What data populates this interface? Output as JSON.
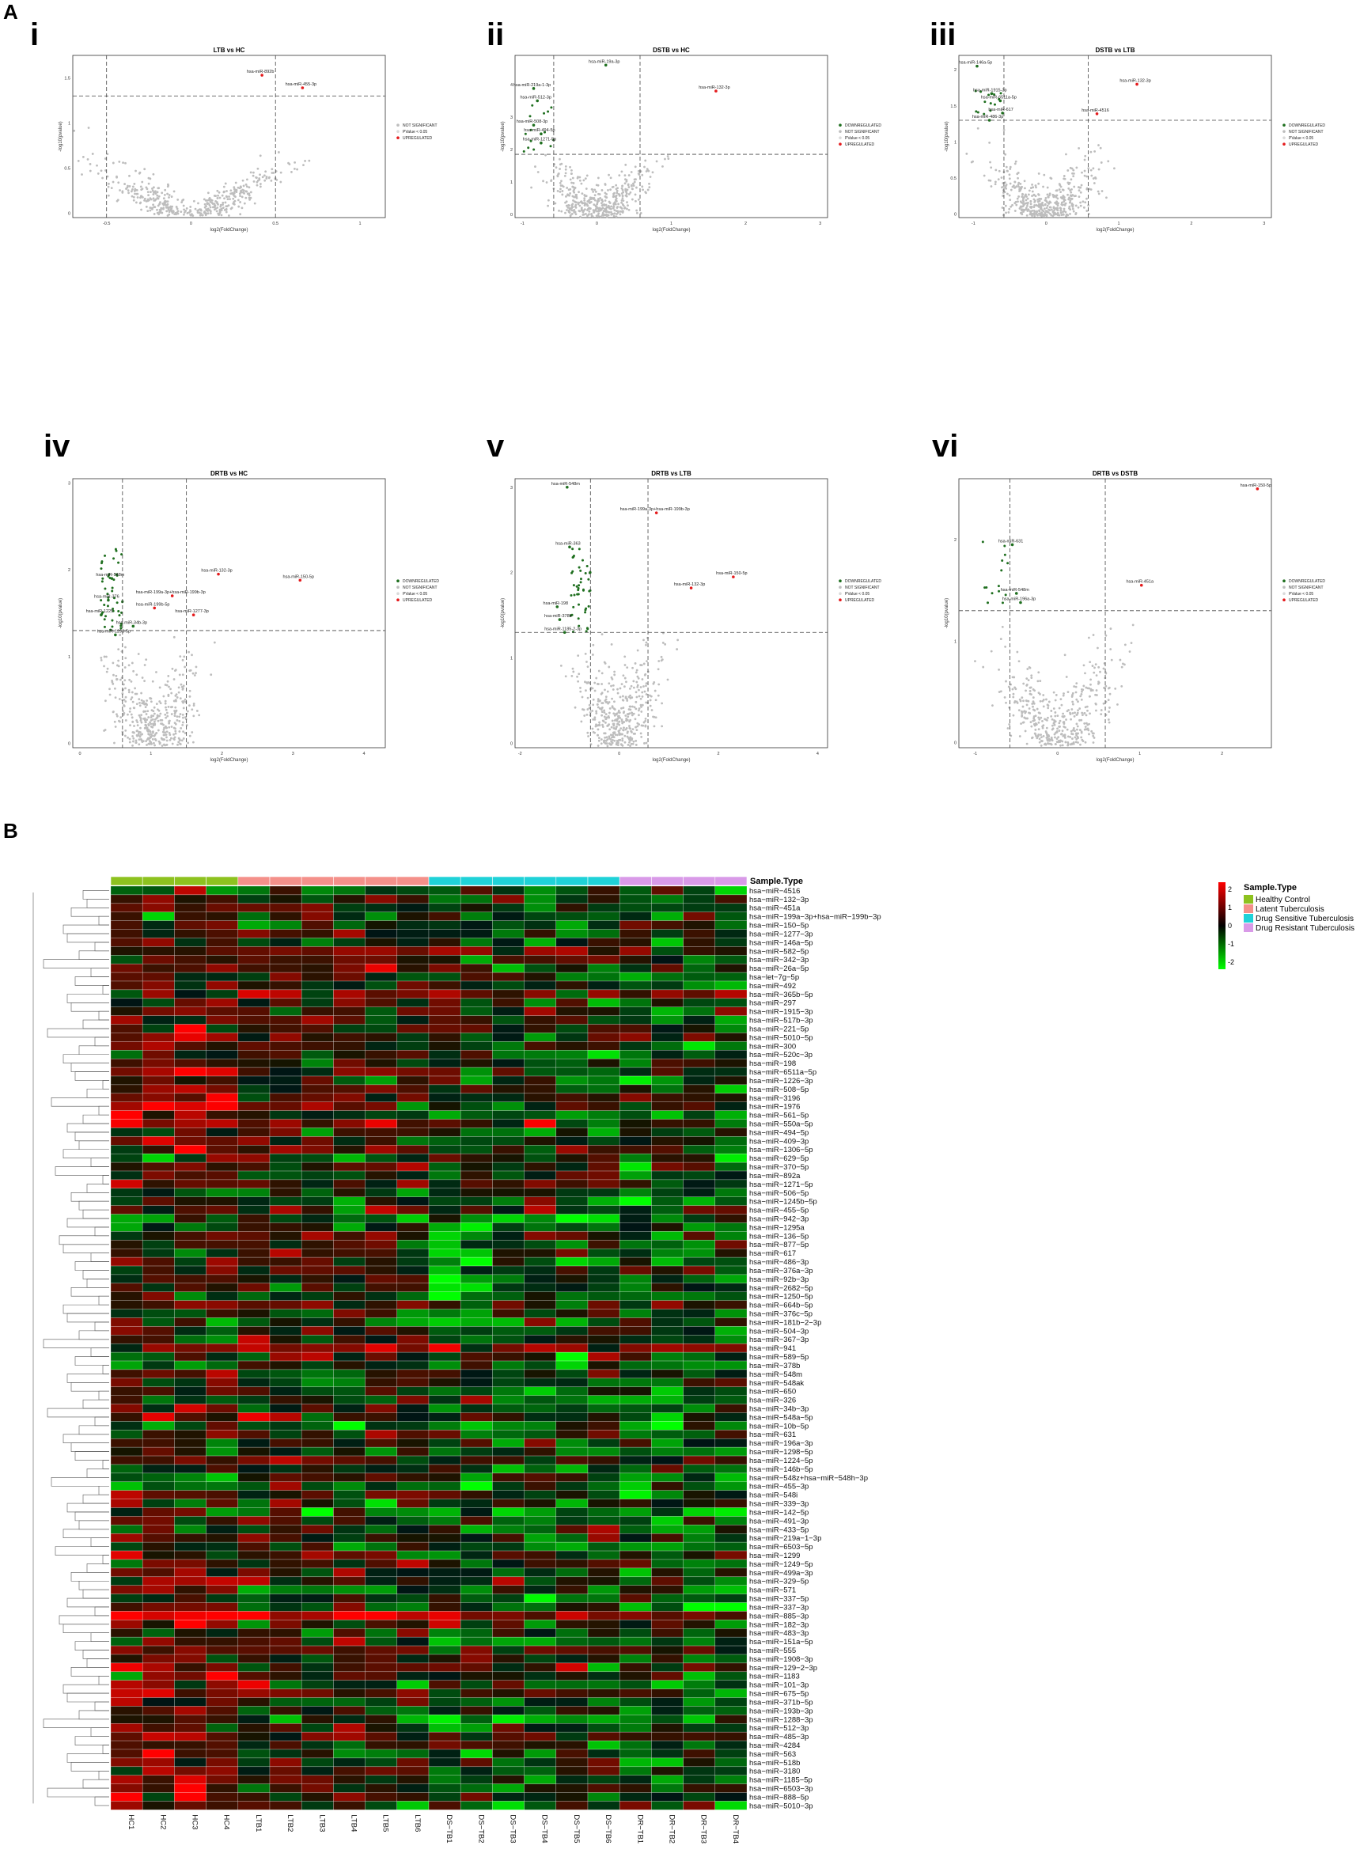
{
  "panel_labels": {
    "a": "A",
    "b": "B"
  },
  "sub_labels": [
    "i",
    "ii",
    "iii",
    "iv",
    "v",
    "vi"
  ],
  "legend_volcano": {
    "items": [
      "DOWNREGULATED",
      "NOT SIGNIFICANT",
      "PValue < 0.05",
      "UPREGULATED"
    ],
    "items_i": [
      "NOT SIGNIFICANT",
      "PValue < 0.05",
      "UPREGULATED"
    ],
    "colors": {
      "down": "#1f6f1f",
      "ns": "#bdbdbd",
      "p": "#d9d9d9",
      "up": "#e41a1c"
    }
  },
  "chart_data": [
    {
      "type": "scatter",
      "title": "LTB vs HC",
      "xlabel": "log2(FoldChange)",
      "ylabel": "-log10(pvalue)",
      "xlim": [
        -0.7,
        1.15
      ],
      "ylim": [
        -0.05,
        1.75
      ],
      "xticks": [
        -0.5,
        0.0,
        0.5,
        1.0
      ],
      "yticks": [
        0.0,
        0.5,
        1.0,
        1.5
      ],
      "vlines": [
        -0.5,
        0.5
      ],
      "hline": 1.3,
      "labels": [
        {
          "text": "hsa-miR-892b",
          "x": 0.42,
          "y": 1.53,
          "cls": "up"
        },
        {
          "text": "hsa-miR-455-3p",
          "x": 0.66,
          "y": 1.39,
          "cls": "up"
        }
      ]
    },
    {
      "type": "scatter",
      "title": "DSTB vs HC",
      "xlabel": "log2(FoldChange)",
      "ylabel": "-log10(pvalue)",
      "xlim": [
        -1.1,
        3.1
      ],
      "ylim": [
        -0.1,
        4.9
      ],
      "xticks": [
        -1,
        0,
        1,
        2,
        3
      ],
      "yticks": [
        0,
        1,
        2,
        3,
        4
      ],
      "vlines": [
        -0.58,
        0.58
      ],
      "hline": 1.85,
      "labels": [
        {
          "text": "hsa-miR-19a-3p",
          "x": 0.12,
          "y": 4.6,
          "cls": "down"
        },
        {
          "text": "hsa-miR-132-3p",
          "x": 1.6,
          "y": 3.8,
          "cls": "up"
        },
        {
          "text": "hsa-miR-219a-1-3p",
          "x": -0.85,
          "y": 3.88,
          "cls": "down"
        },
        {
          "text": "hsa-miR-512-3p",
          "x": -0.8,
          "y": 3.5,
          "cls": "down"
        },
        {
          "text": "hsa-miR-508-3p",
          "x": -0.85,
          "y": 2.75,
          "cls": "down"
        },
        {
          "text": "hsa-miR-494-5p",
          "x": -0.75,
          "y": 2.48,
          "cls": "down"
        },
        {
          "text": "hsa-miR-1271-5p",
          "x": -0.75,
          "y": 2.2,
          "cls": "down"
        }
      ]
    },
    {
      "type": "scatter",
      "title": "DSTB vs LTB",
      "xlabel": "log2(FoldChange)",
      "ylabel": "-log10(pvalue)",
      "xlim": [
        -1.2,
        3.1
      ],
      "ylim": [
        -0.05,
        2.2
      ],
      "xticks": [
        -1,
        0,
        1,
        2,
        3
      ],
      "yticks": [
        0.0,
        0.5,
        1.0,
        1.5,
        2.0
      ],
      "vlines": [
        -0.58,
        0.58
      ],
      "hline": 1.3,
      "labels": [
        {
          "text": "hsa-miR-146a-5p",
          "x": -0.95,
          "y": 2.05,
          "cls": "down"
        },
        {
          "text": "hsa-miR-132-3p",
          "x": 1.25,
          "y": 1.8,
          "cls": "up"
        },
        {
          "text": "hsa-miR-1915-3p",
          "x": -0.75,
          "y": 1.67,
          "cls": "down"
        },
        {
          "text": "hsa-miR-6511a-5p",
          "x": -0.63,
          "y": 1.57,
          "cls": "down"
        },
        {
          "text": "hsa-miR-617",
          "x": -0.6,
          "y": 1.4,
          "cls": "down"
        },
        {
          "text": "hsa-miR-4516",
          "x": 0.7,
          "y": 1.39,
          "cls": "up"
        },
        {
          "text": "hsa-miR-486-3p",
          "x": -0.78,
          "y": 1.3,
          "cls": "down"
        }
      ]
    },
    {
      "type": "scatter",
      "title": "DRTB vs HC",
      "xlabel": "log2(FoldChange)",
      "ylabel": "-log10(pvalue)",
      "xlim": [
        -0.1,
        4.3
      ],
      "ylim": [
        -0.05,
        3.05
      ],
      "xticks": [
        0,
        1,
        2,
        3,
        4
      ],
      "yticks": [
        0,
        1,
        2,
        3
      ],
      "vlines": [
        0.6,
        1.5
      ],
      "hline": 1.3,
      "labels": [
        {
          "text": "hsa-miR-132-3p",
          "x": 1.95,
          "y": 1.95,
          "cls": "up"
        },
        {
          "text": "hsa-miR-150-5p",
          "x": 3.1,
          "y": 1.88,
          "cls": "up"
        },
        {
          "text": "hsa-miR-548m",
          "x": 0.45,
          "y": 1.9,
          "cls": "down"
        },
        {
          "text": "hsa-miR-199a-3p+hsa-miR-199b-3p",
          "x": 1.3,
          "y": 1.7,
          "cls": "up"
        },
        {
          "text": "hsa-miR-376",
          "x": 0.4,
          "y": 1.65,
          "cls": "down"
        },
        {
          "text": "hsa-miR-199b-5p",
          "x": 1.05,
          "y": 1.56,
          "cls": "up"
        },
        {
          "text": "hsa-miR-1277-3p",
          "x": 1.6,
          "y": 1.48,
          "cls": "up"
        },
        {
          "text": "hsa-miR-1225",
          "x": 0.3,
          "y": 1.48,
          "cls": "down"
        },
        {
          "text": "hsa-miR-34b-3p",
          "x": 0.75,
          "y": 1.35,
          "cls": "down"
        },
        {
          "text": "hsa-miR-1298-5p",
          "x": 0.5,
          "y": 1.25,
          "cls": "down"
        }
      ]
    },
    {
      "type": "scatter",
      "title": "DRTB vs LTB",
      "xlabel": "log2(FoldChange)",
      "ylabel": "-log10(pvalue)",
      "xlim": [
        -2.1,
        4.2
      ],
      "ylim": [
        -0.05,
        3.1
      ],
      "xticks": [
        -2,
        0,
        2,
        4
      ],
      "yticks": [
        0,
        1,
        2,
        3
      ],
      "vlines": [
        -0.58,
        0.58
      ],
      "hline": 1.3,
      "labels": [
        {
          "text": "hsa-miR-548m",
          "x": -1.05,
          "y": 3.0,
          "cls": "down"
        },
        {
          "text": "hsa-miR-199a-3p+hsa-miR-199b-3p",
          "x": 0.75,
          "y": 2.7,
          "cls": "up"
        },
        {
          "text": "hsa-miR-363",
          "x": -1.0,
          "y": 2.3,
          "cls": "down"
        },
        {
          "text": "hsa-miR-150-5p",
          "x": 2.3,
          "y": 1.95,
          "cls": "up"
        },
        {
          "text": "hsa-miR-132-3p",
          "x": 1.45,
          "y": 1.82,
          "cls": "up"
        },
        {
          "text": "hsa-miR-198",
          "x": -1.25,
          "y": 1.6,
          "cls": "down"
        },
        {
          "text": "hsa-miR-378b",
          "x": -1.2,
          "y": 1.45,
          "cls": "down"
        },
        {
          "text": "hsa-miR-1185-2-3p",
          "x": -1.1,
          "y": 1.3,
          "cls": "down"
        }
      ]
    },
    {
      "type": "scatter",
      "title": "DRTB vs DSTB",
      "xlabel": "log2(FoldChange)",
      "ylabel": "-log10(pvalue)",
      "xlim": [
        -1.2,
        2.6
      ],
      "ylim": [
        -0.05,
        2.6
      ],
      "xticks": [
        -1,
        0,
        1,
        2
      ],
      "yticks": [
        0,
        1,
        2
      ],
      "vlines": [
        -0.58,
        0.58
      ],
      "hline": 1.3,
      "labels": [
        {
          "text": "hsa-miR-150-5p",
          "x": 2.43,
          "y": 2.5,
          "cls": "up"
        },
        {
          "text": "hsa-miR-631",
          "x": -0.55,
          "y": 1.95,
          "cls": "down"
        },
        {
          "text": "hsa-miR-451a",
          "x": 1.02,
          "y": 1.55,
          "cls": "up"
        },
        {
          "text": "hsa-miR-548m",
          "x": -0.5,
          "y": 1.47,
          "cls": "down"
        },
        {
          "text": "hsa-miR-196a-3p",
          "x": -0.45,
          "y": 1.38,
          "cls": "down"
        }
      ]
    },
    {
      "type": "heatmap",
      "columns": [
        "HC1",
        "HC2",
        "HC3",
        "HC4",
        "LTB1",
        "LTB2",
        "LTB3",
        "LTB4",
        "LTB5",
        "LTB6",
        "DS−TB1",
        "DS−TB2",
        "DS−TB3",
        "DS−TB4",
        "DS−TB5",
        "DS−TB6",
        "DR−TB1",
        "DR−TB2",
        "DR−TB3",
        "DR−TB4"
      ],
      "column_groups": [
        0,
        0,
        0,
        0,
        1,
        1,
        1,
        1,
        1,
        1,
        2,
        2,
        2,
        2,
        2,
        2,
        3,
        3,
        3,
        3
      ],
      "group_title": "Sample.Type",
      "groups": [
        {
          "name": "Healthy Control",
          "color": "#8dc21f"
        },
        {
          "name": "Latent Tuberculosis",
          "color": "#f4908a"
        },
        {
          "name": "Drug Sensitive Tuberculosis",
          "color": "#1fd2d8"
        },
        {
          "name": "Drug Resistant Tuberculosis",
          "color": "#d99ae8"
        }
      ],
      "scale": {
        "min": -2,
        "max": 2,
        "ticks": [
          2,
          1,
          0,
          -1,
          -2
        ]
      },
      "rows": [
        "hsa−miR−4516",
        "hsa−miR−132−3p",
        "hsa−miR−451a",
        "hsa−miR−199a−3p+hsa−miR−199b−3p",
        "hsa−miR−150−5p",
        "hsa−miR−1277−3p",
        "hsa−miR−146a−5p",
        "hsa−miR−582−5p",
        "hsa−miR−342−3p",
        "hsa−miR−26a−5p",
        "hsa−let−7g−5p",
        "hsa−miR−492",
        "hsa−miR−365b−5p",
        "hsa−miR−297",
        "hsa−miR−1915−3p",
        "hsa−miR−517b−3p",
        "hsa−miR−221−5p",
        "hsa−miR−5010−5p",
        "hsa−miR−300",
        "hsa−miR−520c−3p",
        "hsa−miR−198",
        "hsa−miR−6511a−5p",
        "hsa−miR−1226−3p",
        "hsa−miR−508−5p",
        "hsa−miR−3196",
        "hsa−miR−1976",
        "hsa−miR−561−5p",
        "hsa−miR−550a−5p",
        "hsa−miR−494−5p",
        "hsa−miR−409−3p",
        "hsa−miR−1306−5p",
        "hsa−miR−629−5p",
        "hsa−miR−370−5p",
        "hsa−miR−892a",
        "hsa−miR−1271−5p",
        "hsa−miR−506−5p",
        "hsa−miR−1245b−5p",
        "hsa−miR−455−5p",
        "hsa−miR−942−3p",
        "hsa−miR−1295a",
        "hsa−miR−136−5p",
        "hsa−miR−877−5p",
        "hsa−miR−617",
        "hsa−miR−486−3p",
        "hsa−miR−376a−3p",
        "hsa−miR−92b−3p",
        "hsa−miR−2682−5p",
        "hsa−miR−1250−5p",
        "hsa−miR−664b−5p",
        "hsa−miR−376c−5p",
        "hsa−miR−181b−2−3p",
        "hsa−miR−504−3p",
        "hsa−miR−367−3p",
        "hsa−miR−941",
        "hsa−miR−589−5p",
        "hsa−miR−378b",
        "hsa−miR−548m",
        "hsa−miR−548ak",
        "hsa−miR−650",
        "hsa−miR−326",
        "hsa−miR−34b−3p",
        "hsa−miR−548a−5p",
        "hsa−miR−10b−5p",
        "hsa−miR−631",
        "hsa−miR−196a−3p",
        "hsa−miR−1298−5p",
        "hsa−miR−1224−5p",
        "hsa−miR−146b−5p",
        "hsa−miR−548z+hsa−miR−548h−3p",
        "hsa−miR−455−3p",
        "hsa−miR−548i",
        "hsa−miR−339−3p",
        "hsa−miR−142−5p",
        "hsa−miR−491−3p",
        "hsa−miR−433−5p",
        "hsa−miR−219a−1−3p",
        "hsa−miR−6503−5p",
        "hsa−miR−1299",
        "hsa−miR−1249−5p",
        "hsa−miR−499a−3p",
        "hsa−miR−329−5p",
        "hsa−miR−571",
        "hsa−miR−337−5p",
        "hsa−miR−337−3p",
        "hsa−miR−885−3p",
        "hsa−miR−182−3p",
        "hsa−miR−483−3p",
        "hsa−miR−151a−5p",
        "hsa−miR−555",
        "hsa−miR−1908−3p",
        "hsa−miR−129−2−3p",
        "hsa−miR−1183",
        "hsa−miR−101−3p",
        "hsa−miR−675−5p",
        "hsa−miR−371b−5p",
        "hsa−miR−193b−3p",
        "hsa−miR−1288−3p",
        "hsa−miR−512−3p",
        "hsa−miR−485−3p",
        "hsa−miR−4284",
        "hsa−miR−563",
        "hsa−miR−518b",
        "hsa−miR−3180",
        "hsa−miR−1185−5p",
        "hsa−miR−6503−3p",
        "hsa−miR−888−5p",
        "hsa−miR−5010−3p"
      ]
    }
  ]
}
